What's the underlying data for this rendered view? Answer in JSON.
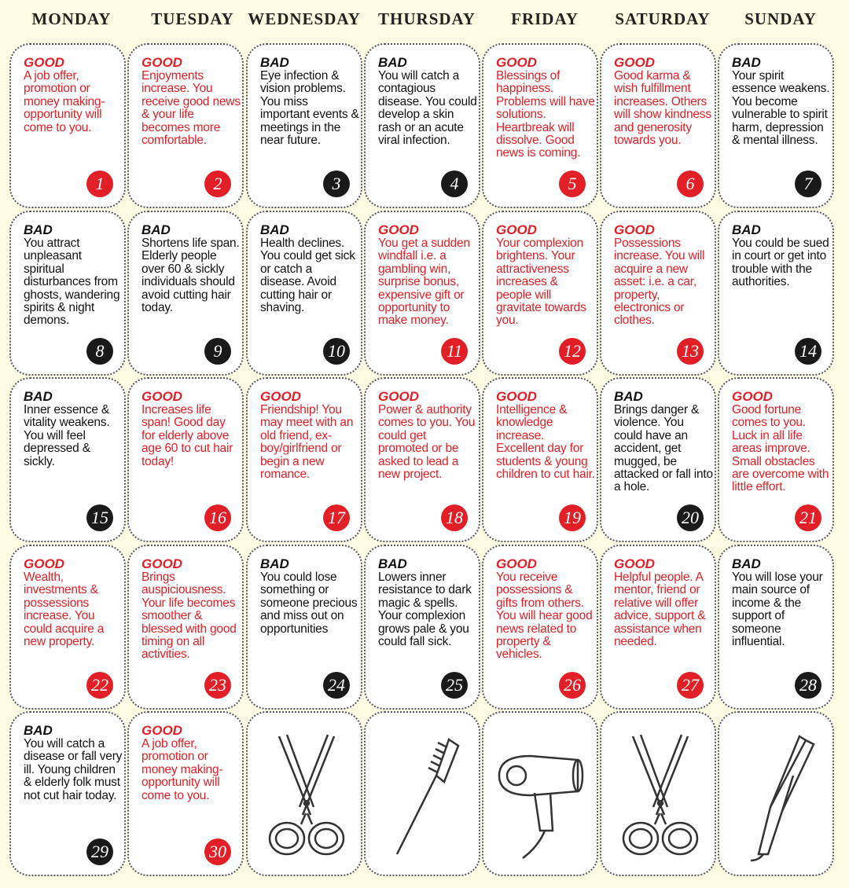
{
  "headers": [
    "MONDAY",
    "TUESDAY",
    "WEDNESDAY",
    "THURSDAY",
    "FRIDAY",
    "SATURDAY",
    "SUNDAY"
  ],
  "colors": {
    "good": "#e21f26",
    "bad": "#1a1a1a",
    "background": "#fdfbe1"
  },
  "days": [
    {
      "num": "1",
      "type": "GOOD",
      "text": "A job offer, promotion or money making-opportunity will come to you."
    },
    {
      "num": "2",
      "type": "GOOD",
      "text": "Enjoyments increase. You receive good news & your life becomes more comfortable."
    },
    {
      "num": "3",
      "type": "BAD",
      "text": "Eye infection & vision problems. You miss important events & meetings in the near future."
    },
    {
      "num": "4",
      "type": "BAD",
      "text": "You will catch a contagious disease. You could develop a skin rash or an acute viral infection."
    },
    {
      "num": "5",
      "type": "GOOD",
      "text": "Blessings of happiness. Problems will have solutions. Heartbreak will dissolve. Good news is coming."
    },
    {
      "num": "6",
      "type": "GOOD",
      "text": "Good karma & wish fulfillment increases. Others will show kindness and generosity towards you."
    },
    {
      "num": "7",
      "type": "BAD",
      "text": "Your spirit essence weakens. You become vulnerable to spirit harm, depression & mental illness."
    },
    {
      "num": "8",
      "type": "BAD",
      "text": "You attract unpleasant spiritual disturbances from ghosts, wandering spirits & night demons."
    },
    {
      "num": "9",
      "type": "BAD",
      "text": "Shortens life span. Elderly people over 60 & sickly individuals should avoid cutting hair today."
    },
    {
      "num": "10",
      "type": "BAD",
      "text": "Health declines. You could get sick or catch a disease. Avoid cutting hair or shaving."
    },
    {
      "num": "11",
      "type": "GOOD",
      "text": "You get a sudden windfall i.e. a gambling win, surprise bonus, expensive gift or opportunity to make money."
    },
    {
      "num": "12",
      "type": "GOOD",
      "text": "Your complexion brightens. Your attractiveness increases & people will gravitate towards you."
    },
    {
      "num": "13",
      "type": "GOOD",
      "text": "Possessions increase. You will acquire a new asset: i.e. a car, property, electronics or clothes."
    },
    {
      "num": "14",
      "type": "BAD",
      "text": "You could be sued in court or get into trouble with the authorities."
    },
    {
      "num": "15",
      "type": "BAD",
      "text": "Inner essence & vitality weakens. You will feel depressed & sickly."
    },
    {
      "num": "16",
      "type": "GOOD",
      "text": "Increases life span! Good day for elderly above age 60 to cut hair today!"
    },
    {
      "num": "17",
      "type": "GOOD",
      "text": "Friendship! You may meet with an old friend, ex-boy/girlfriend or begin a new romance."
    },
    {
      "num": "18",
      "type": "GOOD",
      "text": "Power & authority comes to you. You could get promoted or be asked to lead a new project."
    },
    {
      "num": "19",
      "type": "GOOD",
      "text": "Intelligence & knowledge increase. Excellent day for students & young children to cut hair."
    },
    {
      "num": "20",
      "type": "BAD",
      "text": "Brings danger & violence. You could have an accident, get mugged, be attacked or fall into a hole."
    },
    {
      "num": "21",
      "type": "GOOD",
      "text": "Good fortune comes to you. Luck in all life areas improve. Small obstacles are overcome with little effort."
    },
    {
      "num": "22",
      "type": "GOOD",
      "text": "Wealth, investments & possessions increase. You could acquire a new property."
    },
    {
      "num": "23",
      "type": "GOOD",
      "text": "Brings auspiciousness. Your life becomes smoother & blessed with good timing on all activities."
    },
    {
      "num": "24",
      "type": "BAD",
      "text": "You could lose something or someone precious and miss out on opportunities"
    },
    {
      "num": "25",
      "type": "BAD",
      "text": "Lowers inner resistance to dark magic & spells. Your complexion grows pale & you could fall sick."
    },
    {
      "num": "26",
      "type": "GOOD",
      "text": "You receive possessions & gifts from others. You will hear good news related to property & vehicles."
    },
    {
      "num": "27",
      "type": "GOOD",
      "text": "Helpful people. A mentor, friend or relative will offer advice, support & assistance when needed."
    },
    {
      "num": "28",
      "type": "BAD",
      "text": "You will lose your main source of income & the support of someone influential."
    },
    {
      "num": "29",
      "type": "BAD",
      "text": "You will catch a disease or fall very ill. Young children & elderly folk must not cut hair today."
    },
    {
      "num": "30",
      "type": "GOOD",
      "text": "A job offer, promotion or money making-opportunity will come to you."
    }
  ],
  "tools": [
    "scissors-icon",
    "comb-icon",
    "hair-dryer-icon",
    "scissors-icon",
    "flat-iron-icon"
  ]
}
